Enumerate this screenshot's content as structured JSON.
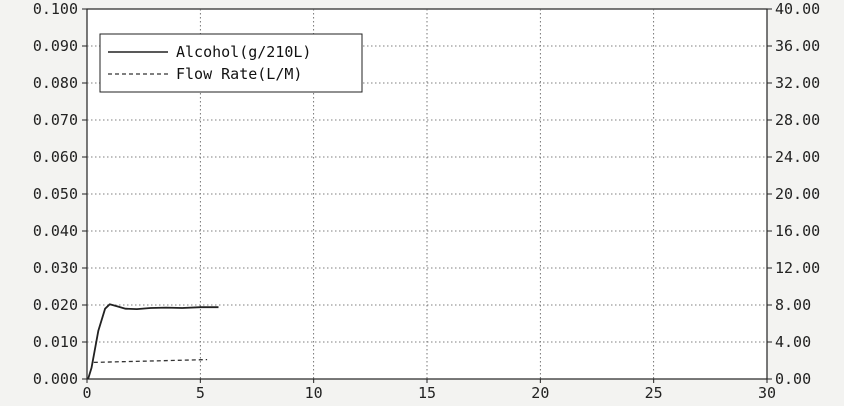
{
  "chart_data": {
    "type": "line",
    "x_ticks": [
      "0",
      "5",
      "10",
      "15",
      "20",
      "25",
      "30"
    ],
    "y_left_ticks": [
      "0.000",
      "0.010",
      "0.020",
      "0.030",
      "0.040",
      "0.050",
      "0.060",
      "0.070",
      "0.080",
      "0.090",
      "0.100"
    ],
    "y_right_ticks": [
      "0.00",
      "4.00",
      "8.00",
      "12.00",
      "16.00",
      "20.00",
      "24.00",
      "28.00",
      "32.00",
      "36.00",
      "40.00"
    ],
    "xlim": [
      0,
      30
    ],
    "ylim_left": [
      0,
      0.1
    ],
    "ylim_right": [
      0,
      40
    ],
    "grid": true,
    "legend_position": "top-left",
    "series": [
      {
        "name": "Alcohol(g/210L)",
        "axis": "left",
        "style": "solid",
        "color": "#222222",
        "x": [
          0.05,
          0.2,
          0.5,
          0.8,
          1.0,
          1.3,
          1.7,
          2.2,
          2.8,
          3.5,
          4.2,
          5.0,
          5.8
        ],
        "y": [
          0.0,
          0.003,
          0.013,
          0.019,
          0.0202,
          0.0197,
          0.019,
          0.0189,
          0.0192,
          0.0193,
          0.0192,
          0.0194,
          0.0194
        ]
      },
      {
        "name": "Flow Rate(L/M)",
        "axis": "right",
        "style": "dashed",
        "color": "#333333",
        "x": [
          0.3,
          5.3
        ],
        "y": [
          1.8,
          2.1
        ]
      }
    ]
  }
}
